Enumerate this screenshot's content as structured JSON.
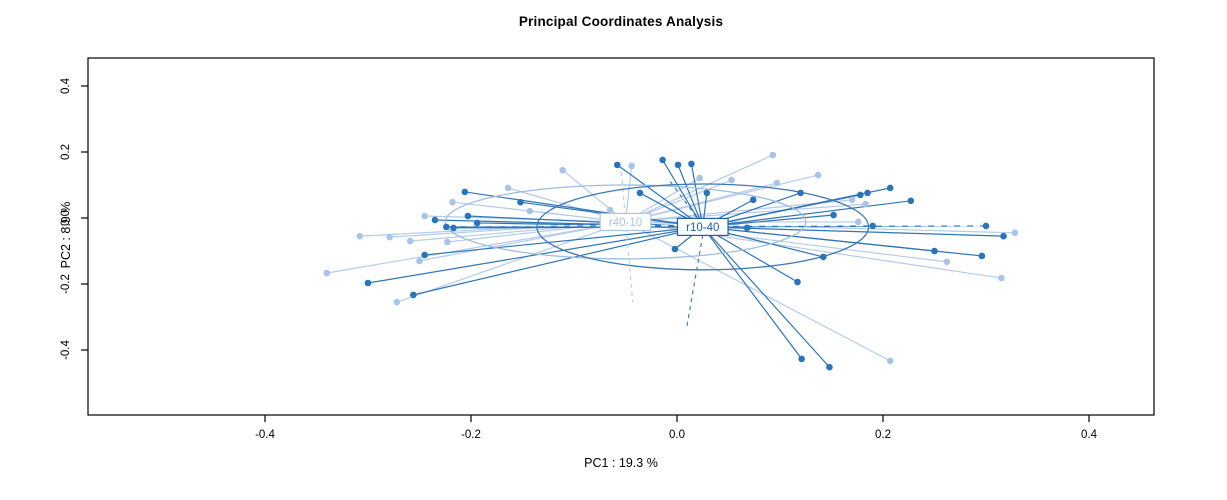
{
  "chart_data": {
    "type": "scatter",
    "title": "Principal Coordinates Analysis",
    "xlabel": "PC1 :  19.3 %",
    "ylabel": "PC2 :  8.9 %",
    "x_tick_values": [
      -0.4,
      -0.2,
      0.0,
      0.2,
      0.4
    ],
    "x_tick_labels": [
      "-0.4",
      "-0.2",
      "0.0",
      "0.2",
      "0.4"
    ],
    "y_tick_values": [
      -0.4,
      -0.2,
      0.0,
      0.2,
      0.4
    ],
    "y_tick_labels": [
      "-0.4",
      "-0.2",
      "0.0",
      "0.2",
      "0.4"
    ],
    "xlim": [
      -0.572,
      0.463
    ],
    "ylim": [
      -0.597,
      0.485
    ],
    "grid": false,
    "legend_position": "none",
    "background": "#ffffff",
    "axis_color": "#000000",
    "groups": [
      {
        "name": "r40-10",
        "point_color": "#a9c4e6",
        "line_color": "#b5cbe9",
        "ellipse_color": "#9fbddf",
        "label_text_color": "#a9c4e6",
        "label_border_color": "#a9c4e6",
        "label_fill": "#ffffff",
        "centroid": [
          -0.05,
          -0.012
        ],
        "ellipse": {
          "rx": 0.175,
          "ry": 0.112
        },
        "points": [
          [
            -0.34,
            -0.167
          ],
          [
            -0.308,
            -0.055
          ],
          [
            -0.279,
            -0.058
          ],
          [
            -0.272,
            -0.255
          ],
          [
            -0.259,
            -0.07
          ],
          [
            -0.245,
            0.006
          ],
          [
            -0.25,
            -0.13
          ],
          [
            -0.223,
            -0.073
          ],
          [
            -0.218,
            0.048
          ],
          [
            -0.164,
            0.091
          ],
          [
            -0.143,
            0.021
          ],
          [
            -0.111,
            0.145
          ],
          [
            -0.065,
            0.024
          ],
          [
            -0.044,
            0.158
          ],
          [
            0.022,
            0.121
          ],
          [
            0.053,
            0.115
          ],
          [
            0.093,
            0.191
          ],
          [
            0.097,
            0.106
          ],
          [
            0.137,
            0.13
          ],
          [
            0.17,
            0.055
          ],
          [
            0.183,
            0.042
          ],
          [
            0.176,
            -0.012
          ],
          [
            0.207,
            -0.433
          ],
          [
            0.262,
            -0.133
          ],
          [
            0.315,
            -0.182
          ],
          [
            0.328,
            -0.045
          ]
        ]
      },
      {
        "name": "r10-40",
        "point_color": "#2a74b8",
        "line_color": "#2e75b8",
        "ellipse_color": "#3c78b4",
        "label_text_color": "#1f5fa0",
        "label_border_color": "#1f5fa0",
        "label_fill": "#ffffff",
        "centroid": [
          0.025,
          -0.027
        ],
        "ellipse": {
          "rx": 0.161,
          "ry": 0.13
        },
        "points": [
          [
            -0.3,
            -0.197
          ],
          [
            -0.256,
            -0.233
          ],
          [
            -0.245,
            -0.112
          ],
          [
            -0.235,
            -0.006
          ],
          [
            -0.224,
            -0.027
          ],
          [
            -0.217,
            -0.03
          ],
          [
            -0.206,
            0.079
          ],
          [
            -0.203,
            0.006
          ],
          [
            -0.194,
            -0.015
          ],
          [
            -0.152,
            0.048
          ],
          [
            -0.058,
            0.161
          ],
          [
            -0.036,
            0.076
          ],
          [
            -0.014,
            0.176
          ],
          [
            -0.002,
            -0.094
          ],
          [
            0.001,
            0.161
          ],
          [
            0.014,
            0.164
          ],
          [
            0.029,
            0.076
          ],
          [
            0.068,
            -0.03
          ],
          [
            0.074,
            0.055
          ],
          [
            0.117,
            -0.194
          ],
          [
            0.12,
            0.076
          ],
          [
            0.121,
            -0.427
          ],
          [
            0.148,
            -0.452
          ],
          [
            0.152,
            0.009
          ],
          [
            0.142,
            -0.118
          ],
          [
            0.178,
            0.07
          ],
          [
            0.185,
            0.076
          ],
          [
            0.19,
            -0.024
          ],
          [
            0.207,
            0.091
          ],
          [
            0.227,
            0.052
          ],
          [
            0.25,
            -0.1
          ],
          [
            0.296,
            -0.115
          ],
          [
            0.3,
            -0.024
          ],
          [
            0.317,
            -0.055
          ]
        ]
      }
    ],
    "dashed_overlays": [
      {
        "color": "#b5cbe9",
        "from": [
          -0.054,
          0.139
        ],
        "to": [
          -0.043,
          -0.255
        ],
        "width": 1.1,
        "dash": "4,4"
      },
      {
        "color": "#2e75b8",
        "from": [
          0.025,
          -0.052
        ],
        "to": [
          0.009,
          -0.339
        ],
        "width": 1.1,
        "dash": "4,4"
      },
      {
        "color": "#2e75b8",
        "from": [
          0.028,
          -0.036
        ],
        "to": [
          -0.009,
          0.121
        ],
        "width": 1.1,
        "dash": "4,4"
      },
      {
        "color": "#ffffff",
        "from": [
          -0.23,
          -0.023
        ],
        "to": [
          0.372,
          -0.023
        ],
        "width": 1.5,
        "dash": "7,6"
      }
    ]
  }
}
